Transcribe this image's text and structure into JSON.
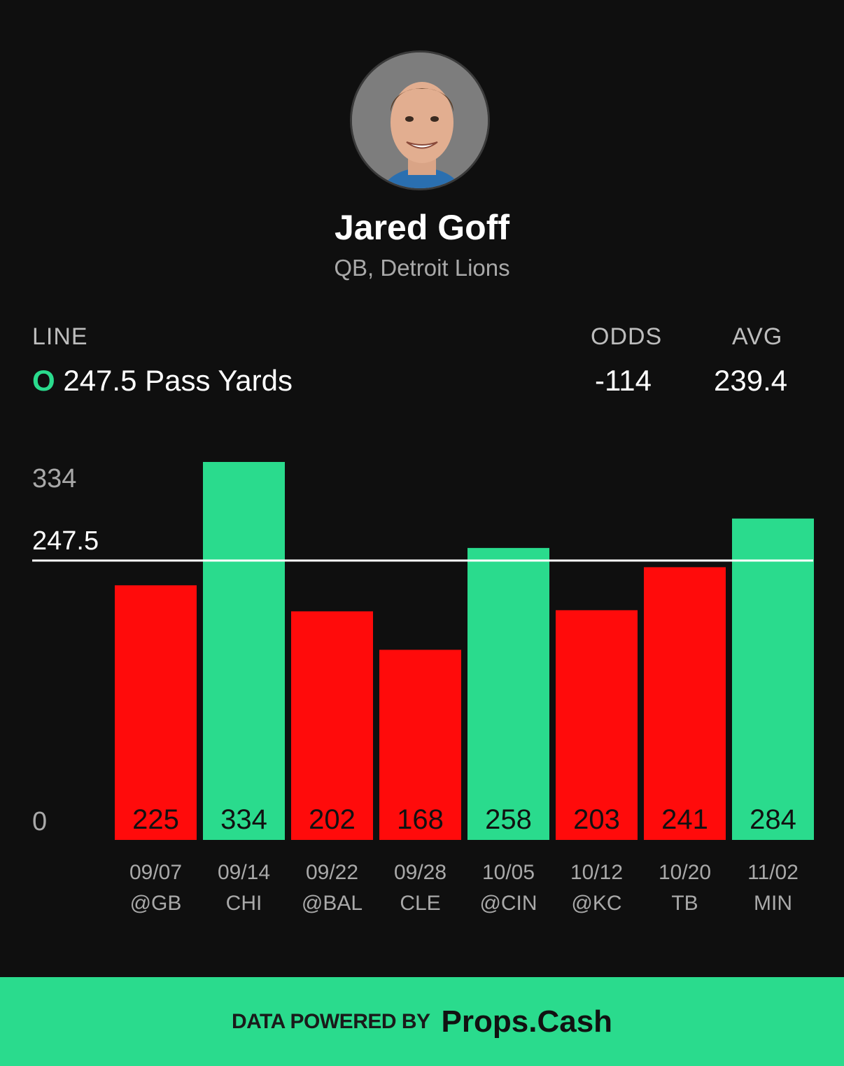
{
  "player": {
    "name": "Jared Goff",
    "position_team": "QB, Detroit Lions"
  },
  "stats": {
    "line_label": "LINE",
    "over_marker": "O",
    "line_text": "247.5 Pass Yards",
    "odds_label": "ODDS",
    "odds_value": "-114",
    "avg_label": "AVG",
    "avg_value": "239.4"
  },
  "colors": {
    "over": "#2adb8d",
    "under": "#ff0b0b",
    "background": "#0f0f0f"
  },
  "chart_data": {
    "type": "bar",
    "categories": [
      "09/07 @GB",
      "09/14 CHI",
      "09/22 @BAL",
      "09/28 CLE",
      "10/05 @CIN",
      "10/12 @KC",
      "10/20 TB",
      "11/02 MIN"
    ],
    "dates": [
      "09/07",
      "09/14",
      "09/22",
      "09/28",
      "10/05",
      "10/12",
      "10/20",
      "11/02"
    ],
    "opponents": [
      "@GB",
      "CHI",
      "@BAL",
      "CLE",
      "@CIN",
      "@KC",
      "TB",
      "MIN"
    ],
    "values": [
      225,
      334,
      202,
      168,
      258,
      203,
      241,
      284
    ],
    "threshold": 247.5,
    "threshold_label": "247.5",
    "ylim": [
      0,
      334
    ],
    "y_tick_labels": [
      "334",
      "0"
    ]
  },
  "footer": {
    "text": "DATA POWERED BY",
    "brand": "Props.Cash"
  }
}
